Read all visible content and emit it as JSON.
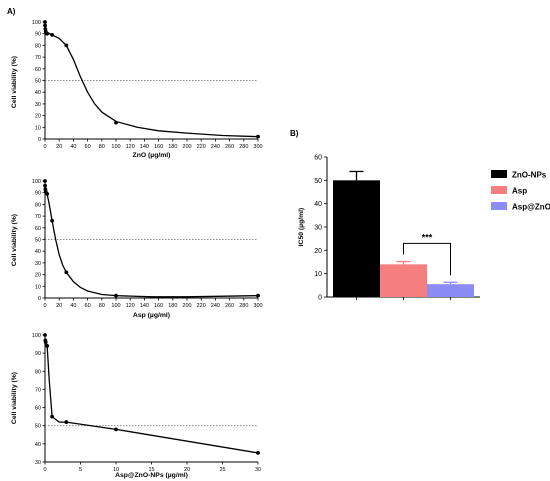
{
  "panel_a_label": "A)",
  "panel_b_label": "B)",
  "chart_data": [
    {
      "type": "line",
      "xlabel": "ZnO (µg/ml)",
      "ylabel": "Cell viability (%)",
      "xlim": [
        0,
        300
      ],
      "ylim": [
        0,
        100
      ],
      "xticks": [
        0,
        20,
        40,
        60,
        80,
        100,
        120,
        140,
        160,
        180,
        200,
        220,
        240,
        260,
        280,
        300
      ],
      "yticks": [
        0,
        10,
        20,
        30,
        40,
        50,
        60,
        70,
        80,
        90,
        100
      ],
      "reference_line_y": 50,
      "points": [
        {
          "x": 0,
          "y": 100
        },
        {
          "x": 0.1,
          "y": 97
        },
        {
          "x": 0.5,
          "y": 94
        },
        {
          "x": 1,
          "y": 92
        },
        {
          "x": 3,
          "y": 90
        },
        {
          "x": 10,
          "y": 89
        },
        {
          "x": 30,
          "y": 80
        },
        {
          "x": 100,
          "y": 14
        },
        {
          "x": 300,
          "y": 2
        }
      ],
      "curve": [
        {
          "x": 0,
          "y": 92
        },
        {
          "x": 10,
          "y": 89
        },
        {
          "x": 20,
          "y": 86
        },
        {
          "x": 30,
          "y": 80
        },
        {
          "x": 40,
          "y": 68
        },
        {
          "x": 50,
          "y": 53
        },
        {
          "x": 60,
          "y": 40
        },
        {
          "x": 70,
          "y": 30
        },
        {
          "x": 80,
          "y": 23
        },
        {
          "x": 100,
          "y": 15
        },
        {
          "x": 130,
          "y": 10
        },
        {
          "x": 160,
          "y": 7
        },
        {
          "x": 200,
          "y": 5
        },
        {
          "x": 250,
          "y": 3
        },
        {
          "x": 300,
          "y": 2
        }
      ]
    },
    {
      "type": "line",
      "xlabel": "Asp (µg/ml)",
      "ylabel": "Cell viability (%)",
      "xlim": [
        0,
        300
      ],
      "ylim": [
        0,
        100
      ],
      "xticks": [
        0,
        20,
        40,
        60,
        80,
        100,
        120,
        140,
        160,
        180,
        200,
        220,
        240,
        260,
        280,
        300
      ],
      "yticks": [
        0,
        10,
        20,
        30,
        40,
        50,
        60,
        70,
        80,
        90,
        100
      ],
      "reference_line_y": 50,
      "points": [
        {
          "x": 0,
          "y": 100
        },
        {
          "x": 0.1,
          "y": 96
        },
        {
          "x": 0.5,
          "y": 93
        },
        {
          "x": 1,
          "y": 91
        },
        {
          "x": 3,
          "y": 89
        },
        {
          "x": 10,
          "y": 66
        },
        {
          "x": 30,
          "y": 22
        },
        {
          "x": 100,
          "y": 2
        },
        {
          "x": 300,
          "y": 2
        }
      ],
      "curve": [
        {
          "x": 0,
          "y": 95
        },
        {
          "x": 3,
          "y": 89
        },
        {
          "x": 6,
          "y": 80
        },
        {
          "x": 10,
          "y": 66
        },
        {
          "x": 15,
          "y": 50
        },
        {
          "x": 20,
          "y": 37
        },
        {
          "x": 25,
          "y": 28
        },
        {
          "x": 30,
          "y": 22
        },
        {
          "x": 40,
          "y": 14
        },
        {
          "x": 50,
          "y": 9
        },
        {
          "x": 60,
          "y": 6
        },
        {
          "x": 80,
          "y": 3
        },
        {
          "x": 100,
          "y": 2
        },
        {
          "x": 150,
          "y": 1
        },
        {
          "x": 200,
          "y": 1
        },
        {
          "x": 300,
          "y": 2
        }
      ]
    },
    {
      "type": "line",
      "xlabel": "Asp@ZnO-NPs (µg/ml)",
      "ylabel": "Cell viability (%)",
      "xlim": [
        0,
        30
      ],
      "ylim": [
        30,
        100
      ],
      "xticks": [
        0,
        5,
        10,
        15,
        20,
        25,
        30
      ],
      "yticks": [
        30,
        40,
        50,
        60,
        70,
        80,
        90,
        100
      ],
      "reference_line_y": 50,
      "points": [
        {
          "x": 0,
          "y": 100
        },
        {
          "x": 0.05,
          "y": 97
        },
        {
          "x": 0.1,
          "y": 96
        },
        {
          "x": 0.3,
          "y": 94
        },
        {
          "x": 1,
          "y": 55
        },
        {
          "x": 3,
          "y": 52
        },
        {
          "x": 10,
          "y": 48
        },
        {
          "x": 30,
          "y": 35
        }
      ],
      "curve": [
        {
          "x": 0,
          "y": 97
        },
        {
          "x": 0.3,
          "y": 94
        },
        {
          "x": 0.6,
          "y": 75
        },
        {
          "x": 1,
          "y": 55
        },
        {
          "x": 2,
          "y": 52
        },
        {
          "x": 3,
          "y": 52
        },
        {
          "x": 10,
          "y": 48
        },
        {
          "x": 30,
          "y": 35
        }
      ]
    },
    {
      "type": "bar",
      "ylabel": "IC50 (µg/ml)",
      "ylim": [
        0,
        60
      ],
      "yticks": [
        0,
        10,
        20,
        30,
        40,
        50,
        60
      ],
      "categories": [
        "ZnO-NPs",
        "Asp",
        "Asp@ZnO-NPs"
      ],
      "values": [
        50,
        14,
        5.5
      ],
      "errors": [
        3.8,
        1.2,
        0.8
      ],
      "colors": [
        "#000000",
        "#f57f7f",
        "#8c8cf5"
      ],
      "significance": "***"
    }
  ]
}
